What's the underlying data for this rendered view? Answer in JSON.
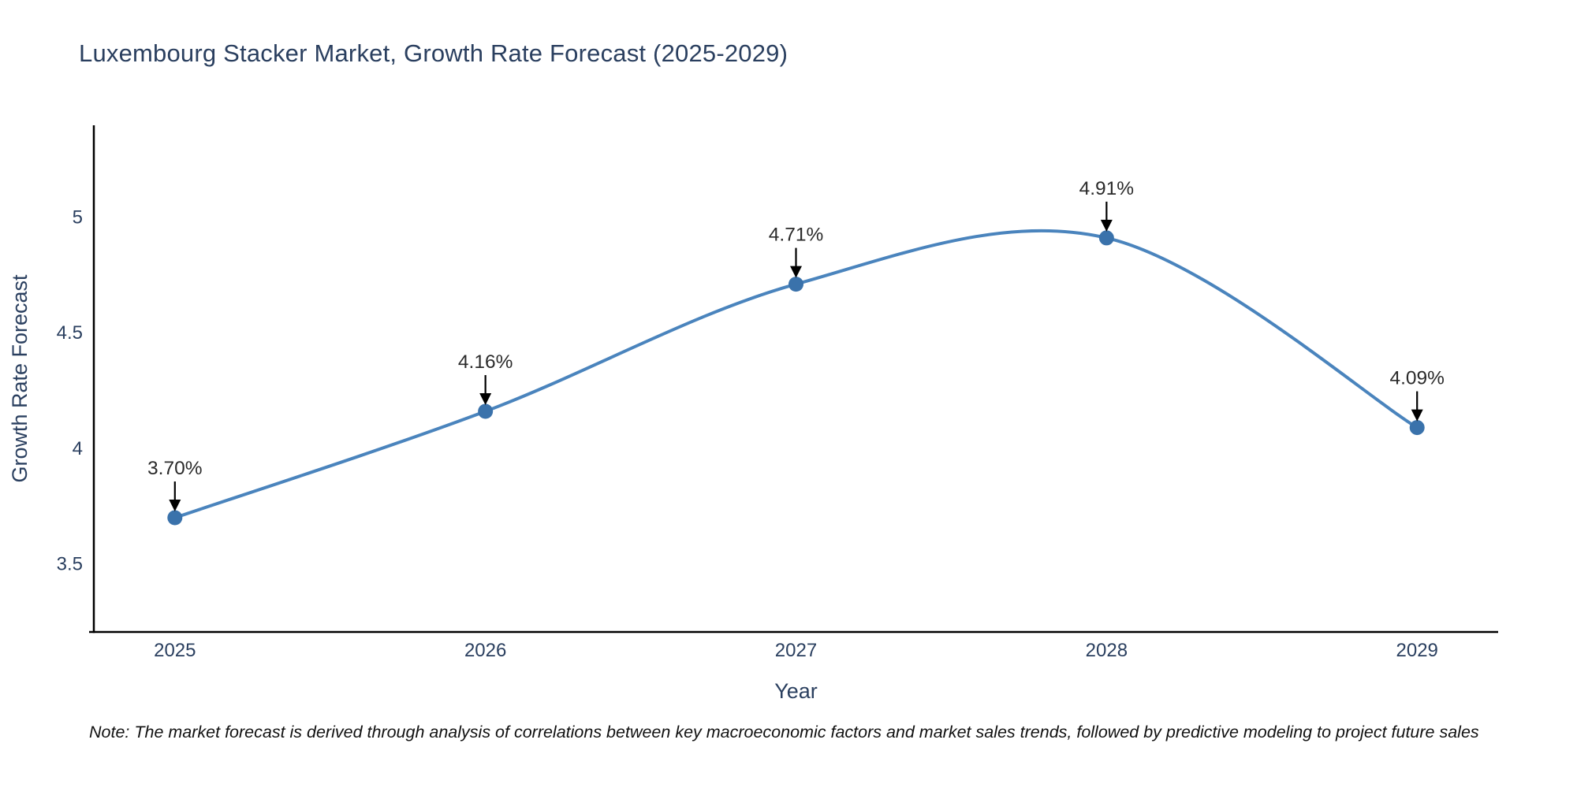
{
  "title": "Luxembourg Stacker Market, Growth Rate Forecast (2025-2029)",
  "note": "Note: The market forecast is derived through analysis of correlations between key macroeconomic factors and market sales trends, followed by predictive modeling to project future sales",
  "colors": {
    "title_text": "#2a3f5f",
    "tick_text": "#2a3f5f",
    "axis_line": "#000000",
    "line": "#4a84bd",
    "marker": "#3a72ab",
    "annotation_text": "#2a2a2a",
    "annotation_arrow": "#000000",
    "background": "#ffffff"
  },
  "chart_data": {
    "type": "line",
    "line_shape": "spline",
    "x": [
      2025,
      2026,
      2027,
      2028,
      2029
    ],
    "values": [
      3.7,
      4.16,
      4.71,
      4.91,
      4.09
    ],
    "point_labels": [
      "3.70%",
      "4.16%",
      "4.71%",
      "4.91%",
      "4.09%"
    ],
    "title": "Luxembourg Stacker Market, Growth Rate Forecast (2025-2029)",
    "xlabel": "Year",
    "ylabel": "Growth Rate Forecast",
    "xticks": [
      2025,
      2026,
      2027,
      2028,
      2029
    ],
    "yticks": [
      3.5,
      4,
      4.5,
      5
    ],
    "xlim": [
      2024.739,
      2029.261
    ],
    "ylim": [
      3.206,
      5.397
    ],
    "grid": false,
    "legend_position": "none"
  }
}
